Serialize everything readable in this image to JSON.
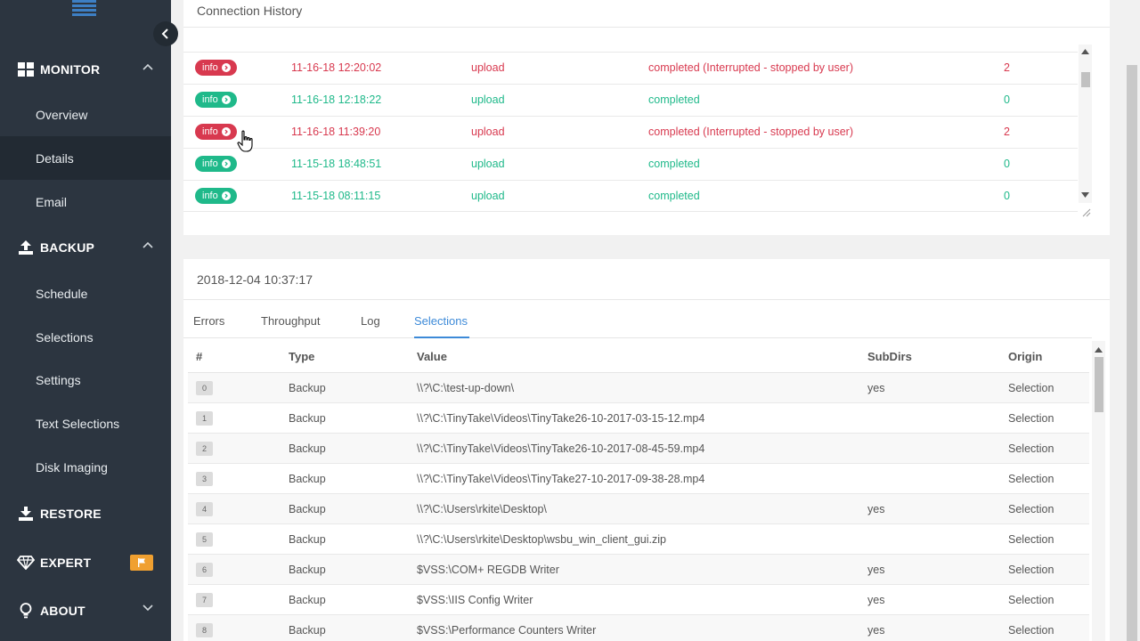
{
  "sidebar": {
    "sections": [
      {
        "label": "MONITOR",
        "icon": "grid-icon",
        "expanded": true,
        "items": [
          {
            "label": "Overview",
            "active": false
          },
          {
            "label": "Details",
            "active": true
          },
          {
            "label": "Email",
            "active": false
          }
        ]
      },
      {
        "label": "BACKUP",
        "icon": "upload-icon",
        "expanded": true,
        "items": [
          {
            "label": "Schedule",
            "active": false
          },
          {
            "label": "Selections",
            "active": false
          },
          {
            "label": "Settings",
            "active": false
          },
          {
            "label": "Text Selections",
            "active": false
          },
          {
            "label": "Disk Imaging",
            "active": false
          }
        ]
      },
      {
        "label": "RESTORE",
        "icon": "download-icon"
      },
      {
        "label": "EXPERT",
        "icon": "diamond-icon",
        "badge_icon": "flag-icon"
      },
      {
        "label": "ABOUT",
        "icon": "lightbulb-icon",
        "expanded": false
      }
    ]
  },
  "connection_history": {
    "title": "Connection History",
    "rows": [
      {
        "badge": "info",
        "status": "error",
        "time": "11-16-18 12:20:02",
        "type": "upload",
        "result": "completed (Interrupted - stopped by user)",
        "count": "2"
      },
      {
        "badge": "info",
        "status": "ok",
        "time": "11-16-18 12:18:22",
        "type": "upload",
        "result": "completed",
        "count": "0"
      },
      {
        "badge": "info",
        "status": "error",
        "time": "11-16-18 11:39:20",
        "type": "upload",
        "result": "completed (Interrupted - stopped by user)",
        "count": "2"
      },
      {
        "badge": "info",
        "status": "ok",
        "time": "11-15-18 18:48:51",
        "type": "upload",
        "result": "completed",
        "count": "0"
      },
      {
        "badge": "info",
        "status": "ok",
        "time": "11-15-18 08:11:15",
        "type": "upload",
        "result": "completed",
        "count": "0"
      }
    ]
  },
  "details": {
    "timestamp": "2018-12-04 10:37:17",
    "tabs": [
      {
        "label": "Errors",
        "active": false
      },
      {
        "label": "Throughput",
        "active": false
      },
      {
        "label": "Log",
        "active": false
      },
      {
        "label": "Selections",
        "active": true
      }
    ],
    "columns": {
      "num": "#",
      "type": "Type",
      "value": "Value",
      "subdirs": "SubDirs",
      "origin": "Origin"
    },
    "rows": [
      {
        "num": "0",
        "type": "Backup",
        "value": "\\\\?\\C:\\test-up-down\\",
        "subdirs": "yes",
        "origin": "Selection"
      },
      {
        "num": "1",
        "type": "Backup",
        "value": "\\\\?\\C:\\TinyTake\\Videos\\TinyTake26-10-2017-03-15-12.mp4",
        "subdirs": "",
        "origin": "Selection"
      },
      {
        "num": "2",
        "type": "Backup",
        "value": "\\\\?\\C:\\TinyTake\\Videos\\TinyTake26-10-2017-08-45-59.mp4",
        "subdirs": "",
        "origin": "Selection"
      },
      {
        "num": "3",
        "type": "Backup",
        "value": "\\\\?\\C:\\TinyTake\\Videos\\TinyTake27-10-2017-09-38-28.mp4",
        "subdirs": "",
        "origin": "Selection"
      },
      {
        "num": "4",
        "type": "Backup",
        "value": "\\\\?\\C:\\Users\\rkite\\Desktop\\",
        "subdirs": "yes",
        "origin": "Selection"
      },
      {
        "num": "5",
        "type": "Backup",
        "value": "\\\\?\\C:\\Users\\rkite\\Desktop\\wsbu_win_client_gui.zip",
        "subdirs": "",
        "origin": "Selection"
      },
      {
        "num": "6",
        "type": "Backup",
        "value": "$VSS:\\COM+ REGDB Writer",
        "subdirs": "yes",
        "origin": "Selection"
      },
      {
        "num": "7",
        "type": "Backup",
        "value": "$VSS:\\IIS Config Writer",
        "subdirs": "yes",
        "origin": "Selection"
      },
      {
        "num": "8",
        "type": "Backup",
        "value": "$VSS:\\Performance Counters Writer",
        "subdirs": "yes",
        "origin": "Selection"
      }
    ]
  },
  "colors": {
    "sidebar_bg": "#2c3540",
    "accent": "#3d8ad8",
    "error": "#d8394f",
    "ok": "#1fb98a",
    "badge": "#f0a030"
  }
}
